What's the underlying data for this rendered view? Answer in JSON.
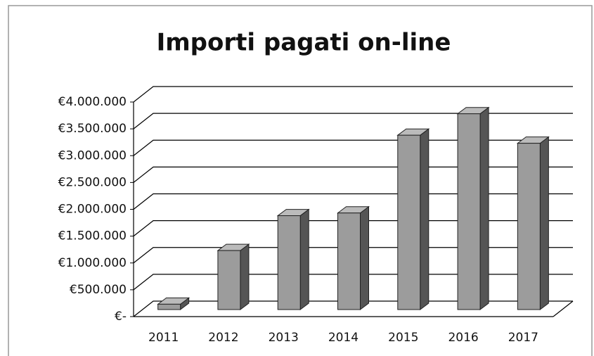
{
  "chart_data": {
    "type": "bar3d",
    "title": "Importi pagati on-line",
    "categories": [
      "2011",
      "2012",
      "2013",
      "2014",
      "2015",
      "2016",
      "2017"
    ],
    "values": [
      100000,
      1100000,
      1750000,
      1800000,
      3250000,
      3650000,
      3100000
    ],
    "color": "#9c9c9c",
    "ylim": [
      0,
      4000000
    ],
    "yticks": [
      {
        "value": 0,
        "label": "€-"
      },
      {
        "value": 500000,
        "label": "€500.000"
      },
      {
        "value": 1000000,
        "label": "€1.000.000"
      },
      {
        "value": 1500000,
        "label": "€1.500.000"
      },
      {
        "value": 2000000,
        "label": "€2.000.000"
      },
      {
        "value": 2500000,
        "label": "€2.500.000"
      },
      {
        "value": 3000000,
        "label": "€3.000.000"
      },
      {
        "value": 3500000,
        "label": "€3.500.000"
      },
      {
        "value": 4000000,
        "label": "€4.000.000"
      }
    ],
    "grid": true
  }
}
